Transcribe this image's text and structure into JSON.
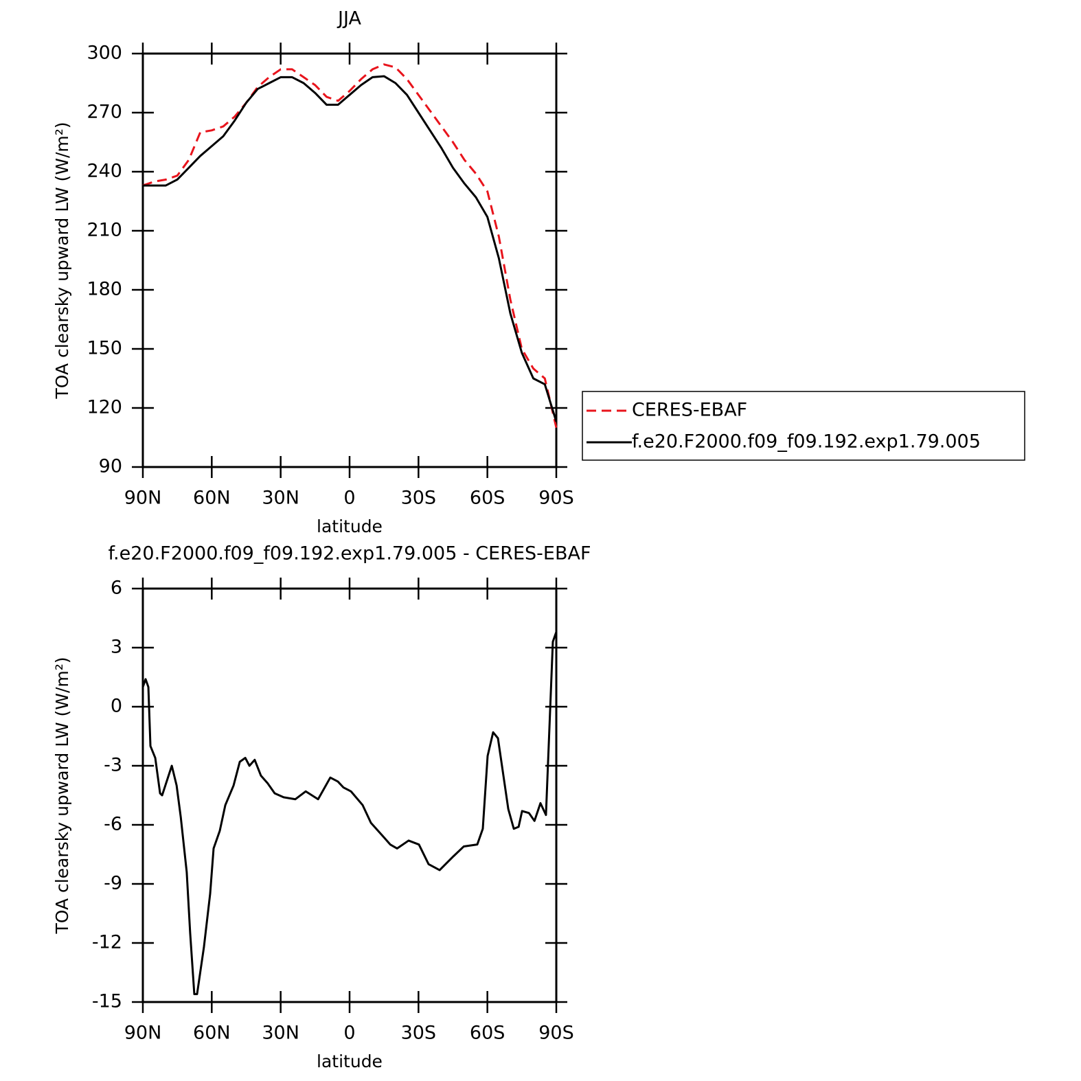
{
  "chart_data": [
    {
      "type": "line",
      "title": "JJA",
      "xlabel": "latitude",
      "ylabel": "TOA clearsky upward LW (W/m²)",
      "xlim": [
        90,
        -90
      ],
      "xticks": [
        {
          "value": 90,
          "label": "90N"
        },
        {
          "value": 60,
          "label": "60N"
        },
        {
          "value": 30,
          "label": "30N"
        },
        0,
        {
          "value": -30,
          "label": "30S"
        },
        {
          "value": -60,
          "label": "60S"
        },
        {
          "value": -90,
          "label": "90S"
        }
      ],
      "ylim": [
        90,
        300
      ],
      "yticks": [
        90,
        120,
        150,
        180,
        210,
        240,
        270,
        300
      ],
      "legend": "right",
      "x": [
        90,
        85,
        80,
        75,
        70,
        65,
        60,
        55,
        50,
        45,
        40,
        35,
        30,
        25,
        20,
        15,
        10,
        5,
        0,
        -5,
        -10,
        -15,
        -20,
        -25,
        -30,
        -35,
        -40,
        -45,
        -50,
        -55,
        -60,
        -65,
        -70,
        -75,
        -80,
        -85,
        -90
      ],
      "series": [
        {
          "name": "CERES-EBAF",
          "color": "#e8141c",
          "dashed": true,
          "values": [
            233,
            235,
            236,
            238,
            246,
            260,
            261,
            263,
            268,
            275,
            283,
            288,
            292,
            292,
            288,
            284,
            278,
            276,
            281,
            287,
            292,
            294.5,
            293,
            287,
            279,
            271,
            263,
            255,
            246,
            239,
            230,
            207,
            175,
            150,
            140,
            135,
            110
          ]
        },
        {
          "name": "f.e20.F2000.f09_f09.192.exp1.79.005",
          "color": "#000000",
          "dashed": false,
          "values": [
            233,
            233,
            233,
            236,
            242,
            248,
            253,
            258,
            266,
            275,
            282,
            285,
            288,
            288,
            285,
            280,
            274,
            274,
            279,
            284,
            288,
            288.5,
            285,
            279,
            270,
            261,
            252,
            242,
            234,
            227,
            217,
            196,
            168,
            148,
            135,
            132,
            113
          ]
        }
      ]
    },
    {
      "type": "line",
      "title": "f.e20.F2000.f09_f09.192.exp1.79.005 - CERES-EBAF",
      "xlabel": "latitude",
      "ylabel": "TOA clearsky upward LW (W/m²)",
      "xlim": [
        90,
        -90
      ],
      "xticks": [
        {
          "value": 90,
          "label": "90N"
        },
        {
          "value": 60,
          "label": "60N"
        },
        {
          "value": 30,
          "label": "30N"
        },
        0,
        {
          "value": -30,
          "label": "30S"
        },
        {
          "value": -60,
          "label": "60S"
        },
        {
          "value": -90,
          "label": "90S"
        }
      ],
      "ylim": [
        -15,
        6
      ],
      "yticks": [
        -15,
        -12,
        -9,
        -6,
        -3,
        0,
        3,
        6
      ],
      "x": [
        90,
        88.8,
        87.6,
        86.7,
        84.6,
        82.5,
        81.6,
        77.4,
        75.3,
        73.5,
        70.9,
        69.4,
        67.6,
        66.4,
        63.4,
        60.7,
        59.2,
        56.5,
        54.1,
        50.5,
        47.8,
        45.4,
        43.6,
        41.3,
        38.6,
        35.6,
        32.6,
        28.7,
        23.6,
        19.1,
        13.7,
        8.4,
        5.1,
        2.7,
        -0.6,
        -5.7,
        -9.3,
        -14.7,
        -17.7,
        -20.7,
        -25.7,
        -30.2,
        -34.4,
        -39.2,
        -45.2,
        -49.7,
        -55.6,
        -58,
        -60.1,
        -62.5,
        -64.6,
        -69.1,
        -71.5,
        -73.6,
        -75.1,
        -78.1,
        -80.5,
        -83.1,
        -85.5,
        -88.5,
        -90
      ],
      "series": [
        {
          "color": "#000000",
          "dashed": false,
          "values": [
            1,
            1.4,
            1,
            -2,
            -2.6,
            -4.4,
            -4.5,
            -3,
            -4,
            -5.6,
            -8.4,
            -11.5,
            -14.6,
            -14.6,
            -12.2,
            -9.5,
            -7.2,
            -6.3,
            -5,
            -4,
            -2.8,
            -2.6,
            -3,
            -2.7,
            -3.5,
            -3.9,
            -4.4,
            -4.6,
            -4.7,
            -4.3,
            -4.7,
            -3.6,
            -3.8,
            -4.1,
            -4.3,
            -5,
            -5.9,
            -6.6,
            -7,
            -7.2,
            -6.8,
            -7,
            -8,
            -8.3,
            -7.6,
            -7.1,
            -7,
            -6.2,
            -2.5,
            -1.3,
            -1.6,
            -5.2,
            -6.2,
            -6.1,
            -5.3,
            -5.4,
            -5.8,
            -4.9,
            -5.5,
            3.3,
            3.8
          ]
        }
      ]
    }
  ]
}
